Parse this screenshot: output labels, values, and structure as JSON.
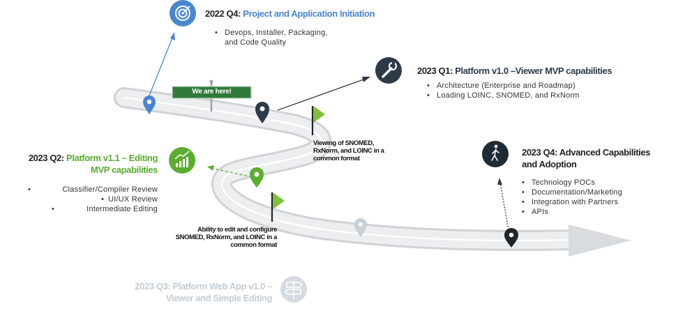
{
  "colors": {
    "blue": "#4a86cf",
    "dark": "#2d3a48",
    "green": "#5aad2e",
    "faded": "#b5c1c9",
    "road": "#e6e8ea"
  },
  "sign": {
    "label": "We are here!"
  },
  "milestones": {
    "q4_2022": {
      "period": "2022 Q4:",
      "name": "Project and Application Initiation",
      "icon": "target-icon",
      "bullets": [
        "Devops, Installer, Packaging,",
        "and Code Quality"
      ]
    },
    "q1_2023": {
      "period": "2023 Q1:",
      "name": "Platform v1.0 –Viewer MVP capabilities",
      "icon": "wrench-icon",
      "bullets": [
        "Architecture (Enterprise and Roadmap)",
        "Loading LOINC, SNOMED, and RxNorm"
      ]
    },
    "q2_2023": {
      "period": "2023 Q2:",
      "name_line1": "Platform v1.1 – Editing",
      "name_line2": "MVP capabilities",
      "icon": "growth-chart-icon",
      "bullets": [
        "Classifier/Compiler Review",
        "UI/UX Review",
        "Intermediate Editing"
      ]
    },
    "q3_2023": {
      "line1": "2023 Q3: Platform Web App v1.0 –",
      "line2": "Viewer and Simple Editing",
      "icon": "signpost-icon"
    },
    "q4_2023": {
      "line1": "2023 Q4: Advanced Capabilities",
      "line2": "and Adoption",
      "icon": "walking-person-icon",
      "bullets": [
        "Technology POCs",
        "Documentation/Marketing",
        "Integration with Partners",
        "APIs"
      ]
    }
  },
  "notes": {
    "viewing": [
      "Viewing of SNOMED,",
      "RxNorm, and LOINC in a",
      "common format"
    ],
    "editing": [
      "Ability to edit and configure",
      "SNOMED, RxNorm, and LOINC in a",
      "common format"
    ]
  }
}
